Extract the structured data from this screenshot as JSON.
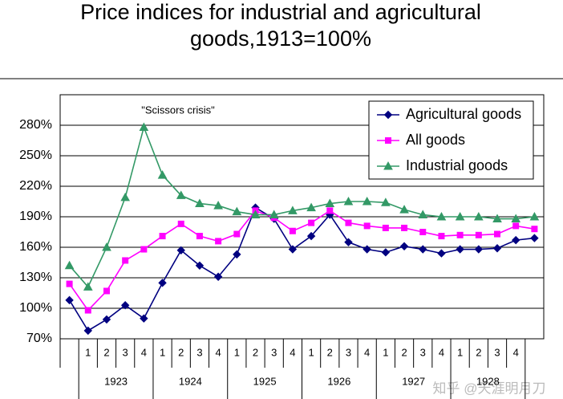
{
  "chart_data": {
    "type": "line",
    "title": [
      "Price indices for industrial and agricultural",
      "goods,1913=100%"
    ],
    "annotation": "\"Scissors crisis\"",
    "watermark": "知乎 @天涯明月刀",
    "categories": [
      null,
      "1",
      "2",
      "3",
      "4",
      "1",
      "2",
      "3",
      "4",
      "1",
      "2",
      "3",
      "4",
      "1",
      "2",
      "3",
      "4",
      "1",
      "2",
      "3",
      "4",
      "1",
      "2",
      "3",
      "4",
      null
    ],
    "category_groups": [
      "1923",
      "1924",
      "1925",
      "1926",
      "1927",
      "1928"
    ],
    "ylim": [
      70,
      310
    ],
    "yticks": [
      {
        "value": 70,
        "label": "70%"
      },
      {
        "value": 100,
        "label": "100%"
      },
      {
        "value": 130,
        "label": "130%"
      },
      {
        "value": 160,
        "label": "160%"
      },
      {
        "value": 190,
        "label": "190%"
      },
      {
        "value": 220,
        "label": "220%"
      },
      {
        "value": 250,
        "label": "250%"
      },
      {
        "value": 280,
        "label": "280%"
      }
    ],
    "grid": true,
    "legend": "top-right",
    "series": [
      {
        "name": "Agricultural goods",
        "color": "#000080",
        "marker": "diamond",
        "values": [
          108,
          78,
          89,
          103,
          90,
          125,
          157,
          142,
          131,
          153,
          199,
          188,
          158,
          171,
          192,
          165,
          158,
          155,
          161,
          158,
          154,
          158,
          158,
          159,
          167,
          169
        ]
      },
      {
        "name": "All goods",
        "color": "#ff00ff",
        "marker": "square",
        "values": [
          124,
          98,
          117,
          147,
          158,
          171,
          183,
          171,
          166,
          173,
          196,
          189,
          176,
          184,
          196,
          184,
          181,
          179,
          179,
          175,
          171,
          172,
          172,
          173,
          181,
          178
        ]
      },
      {
        "name": "Industrial goods",
        "color": "#339966",
        "marker": "triangle",
        "values": [
          142,
          121,
          160,
          209,
          278,
          231,
          211,
          203,
          201,
          195,
          192,
          192,
          196,
          199,
          203,
          205,
          205,
          204,
          197,
          192,
          190,
          190,
          190,
          188,
          188,
          190
        ]
      }
    ]
  }
}
